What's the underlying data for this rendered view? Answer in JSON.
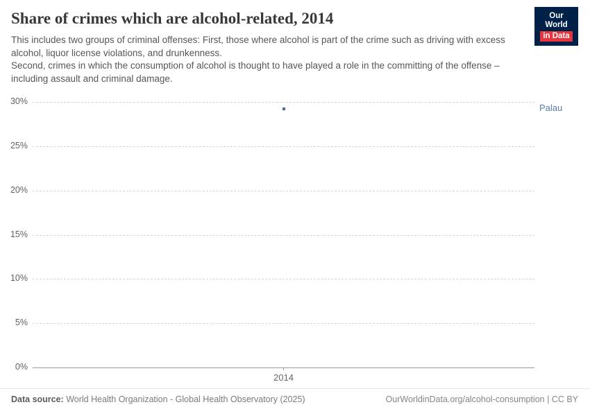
{
  "header": {
    "title": "Share of crimes which are alcohol-related, 2014",
    "subtitle_line1": "This includes two groups of criminal offenses: First, those where alcohol is part of the crime such as driving with excess alcohol, liquor license violations, and drunkenness.",
    "subtitle_line2": "Second, crimes in which the consumption of alcohol is thought to have played a role in the committing of the offense – including assault and criminal damage."
  },
  "logo": {
    "line1": "Our World",
    "line2": "in Data"
  },
  "chart_data": {
    "type": "scatter",
    "title": "Share of crimes which are alcohol-related, 2014",
    "x": [
      2014
    ],
    "series": [
      {
        "name": "Palau",
        "values": [
          29.2
        ]
      }
    ],
    "ylim": [
      0,
      30
    ],
    "yticks": [
      0,
      5,
      10,
      15,
      20,
      25,
      30
    ],
    "ytick_labels": [
      "0%",
      "5%",
      "10%",
      "15%",
      "20%",
      "25%",
      "30%"
    ],
    "xtick_labels": [
      "2014"
    ],
    "grid": true,
    "legend": "entity label right of point"
  },
  "colors": {
    "accent_navy": "#002147",
    "accent_red": "#e5353f",
    "point": "#4c6a9c",
    "entity_label": "#5b7ca6"
  },
  "footer": {
    "data_source_label": "Data source:",
    "data_source_value": " World Health Organization - Global Health Observatory (2025)",
    "link": "OurWorldinData.org/alcohol-consumption | CC BY"
  }
}
